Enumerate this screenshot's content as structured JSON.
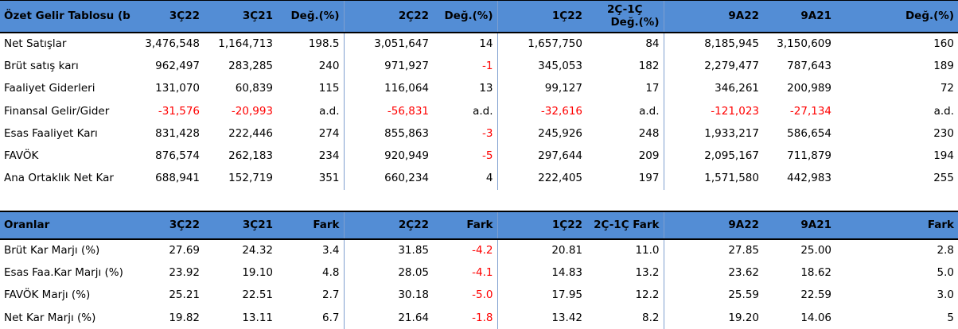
{
  "income": {
    "headers": [
      "Özet Gelir Tablosu (bin TL)",
      "3Ç22",
      "3Ç21",
      "Değ.(%)",
      "2Ç22",
      "Değ.(%)",
      "1Ç22",
      "2Ç-1Ç Değ.(%)",
      "9A22",
      "9A21",
      "Değ.(%)"
    ],
    "rows": [
      [
        "Net Satışlar",
        "3,476,548",
        "1,164,713",
        "198.5",
        "3,051,647",
        "14",
        "1,657,750",
        "84",
        "8,185,945",
        "3,150,609",
        "160"
      ],
      [
        "Brüt satış karı",
        "962,497",
        "283,285",
        "240",
        "971,927",
        "-1",
        "345,053",
        "182",
        "2,279,477",
        "787,643",
        "189"
      ],
      [
        "Faaliyet Giderleri",
        "131,070",
        "60,839",
        "115",
        "116,064",
        "13",
        "99,127",
        "17",
        "346,261",
        "200,989",
        "72"
      ],
      [
        "Finansal Gelir/Gider",
        "-31,576",
        "-20,993",
        "a.d.",
        "-56,831",
        "a.d.",
        "-32,616",
        "a.d.",
        "-121,023",
        "-27,134",
        "a.d."
      ],
      [
        "Esas Faaliyet Karı",
        "831,428",
        "222,446",
        "274",
        "855,863",
        "-3",
        "245,926",
        "248",
        "1,933,217",
        "586,654",
        "230"
      ],
      [
        "FAVÖK",
        "876,574",
        "262,183",
        "234",
        "920,949",
        "-5",
        "297,644",
        "209",
        "2,095,167",
        "711,879",
        "194"
      ],
      [
        "Ana Ortaklık Net Kar",
        "688,941",
        "152,719",
        "351",
        "660,234",
        "4",
        "222,405",
        "197",
        "1,571,580",
        "442,983",
        "255"
      ]
    ]
  },
  "ratios": {
    "headers": [
      "Oranlar",
      "3Ç22",
      "3Ç21",
      "Fark",
      "2Ç22",
      "Fark",
      "1Ç22",
      "2Ç-1Ç Fark",
      "9A22",
      "9A21",
      "Fark"
    ],
    "rows": [
      [
        "Brüt Kar Marjı (%)",
        "27.69",
        "24.32",
        "3.4",
        "31.85",
        "-4.2",
        "20.81",
        "11.0",
        "27.85",
        "25.00",
        "2.8"
      ],
      [
        "Esas Faa.Kar Marjı (%)",
        "23.92",
        "19.10",
        "4.8",
        "28.05",
        "-4.1",
        "14.83",
        "13.2",
        "23.62",
        "18.62",
        "5.0"
      ],
      [
        "FAVÖK Marjı (%)",
        "25.21",
        "22.51",
        "2.7",
        "30.18",
        "-5.0",
        "17.95",
        "12.2",
        "25.59",
        "22.59",
        "3.0"
      ],
      [
        "Net Kar Marjı (%)",
        "19.82",
        "13.11",
        "6.7",
        "21.64",
        "-1.8",
        "13.42",
        "8.2",
        "19.20",
        "14.06",
        "5"
      ]
    ]
  },
  "colors": {
    "header_bg": "#538dd5",
    "negative": "#ff0000"
  }
}
